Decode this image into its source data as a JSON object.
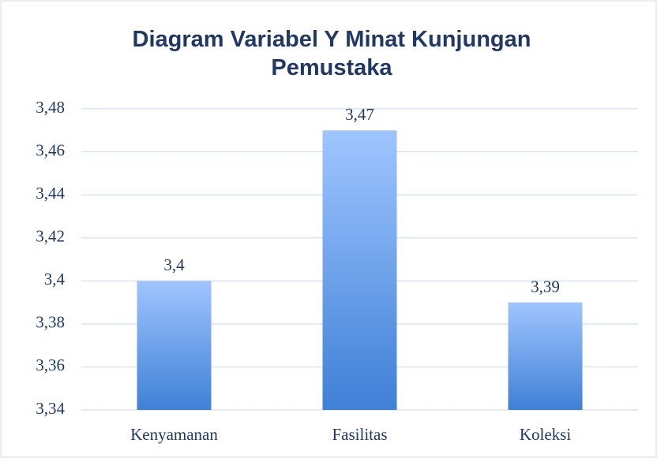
{
  "chart_data": {
    "type": "bar",
    "title": "Diagram Variabel Y Minat Kunjungan Pemustaka",
    "categories": [
      "Kenyamanan",
      "Fasilitas",
      "Koleksi"
    ],
    "values": [
      3.4,
      3.47,
      3.39
    ],
    "value_labels": [
      "3,4",
      "3,47",
      "3,39"
    ],
    "color": "#3f80d6",
    "ylim": [
      3.34,
      3.48
    ],
    "yticks": [
      {
        "value": 3.34,
        "label": "3,34"
      },
      {
        "value": 3.36,
        "label": "3,36"
      },
      {
        "value": 3.38,
        "label": "3,38"
      },
      {
        "value": 3.4,
        "label": "3,4"
      },
      {
        "value": 3.42,
        "label": "3,42"
      },
      {
        "value": 3.44,
        "label": "3,44"
      },
      {
        "value": 3.46,
        "label": "3,46"
      },
      {
        "value": 3.48,
        "label": "3,48"
      }
    ],
    "grid": true
  }
}
